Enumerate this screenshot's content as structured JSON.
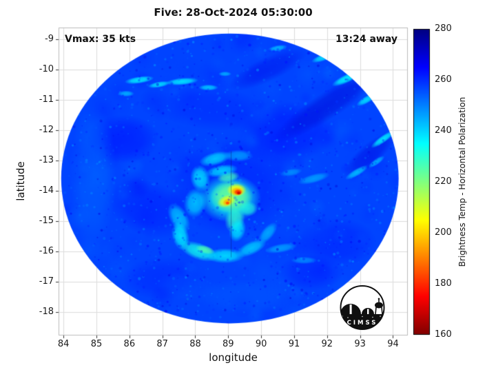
{
  "chart_data": {
    "type": "heatmap",
    "title": "Five: 28-Oct-2024 05:30:00",
    "xlabel": "longitude",
    "ylabel": "latitude",
    "annotations": {
      "vmax": "Vmax: 35 kts",
      "away": "13:24 away"
    },
    "colorbar": {
      "label": "Brightness Temp - Horizontal Polarization",
      "ticks": [
        160,
        180,
        200,
        220,
        240,
        260,
        280
      ],
      "range": [
        160,
        280
      ],
      "colormap": "jet-reversed"
    },
    "xlim": [
      83.85,
      94.45
    ],
    "ylim": [
      -18.78,
      -8.62
    ],
    "xticks": [
      84,
      85,
      86,
      87,
      88,
      89,
      90,
      91,
      92,
      93,
      94
    ],
    "yticks": [
      -9,
      -10,
      -11,
      -12,
      -13,
      -14,
      -15,
      -16,
      -17,
      -18
    ],
    "grid": true,
    "swath": {
      "cx": 89.05,
      "cy": -13.6,
      "rx": 5.12,
      "ry": 4.78,
      "base_temp": 257
    },
    "feature_format": [
      "lon",
      "lat",
      "rx",
      "ry",
      "rot_deg",
      "temp_K",
      "alpha"
    ],
    "features": [
      [
        85.8,
        -12.3,
        1.1,
        0.8,
        0,
        265,
        0.45
      ],
      [
        86.6,
        -14.6,
        1.3,
        0.9,
        20,
        264,
        0.4
      ],
      [
        90.8,
        -12.1,
        1.6,
        1.0,
        -10,
        265,
        0.4
      ],
      [
        92.3,
        -15.7,
        1.2,
        0.8,
        0,
        264,
        0.35
      ],
      [
        88.5,
        -11.3,
        1.8,
        0.7,
        5,
        263,
        0.3
      ],
      [
        91.5,
        -16.7,
        1.0,
        0.6,
        0,
        265,
        0.3
      ],
      [
        87.0,
        -16.9,
        1.2,
        0.7,
        0,
        264,
        0.3
      ],
      [
        92.0,
        -11.2,
        1.9,
        0.45,
        -33,
        270,
        0.5
      ],
      [
        93.3,
        -12.8,
        1.0,
        0.35,
        -40,
        269,
        0.45
      ],
      [
        90.2,
        -10.0,
        1.3,
        0.4,
        -25,
        268,
        0.4
      ],
      [
        84.9,
        -13.5,
        0.7,
        2.5,
        0,
        252,
        0.45
      ],
      [
        89.5,
        -17.5,
        1.5,
        0.6,
        0,
        253,
        0.35
      ],
      [
        87.8,
        -17.2,
        1.0,
        0.5,
        10,
        254,
        0.3
      ],
      [
        86.3,
        -10.35,
        0.45,
        0.12,
        -8,
        236,
        0.9
      ],
      [
        86.9,
        -10.5,
        0.35,
        0.1,
        -10,
        238,
        0.9
      ],
      [
        87.6,
        -10.4,
        0.5,
        0.12,
        -5,
        237,
        0.9
      ],
      [
        88.4,
        -10.6,
        0.3,
        0.1,
        0,
        240,
        0.85
      ],
      [
        85.9,
        -10.8,
        0.25,
        0.1,
        0,
        242,
        0.8
      ],
      [
        88.9,
        -10.15,
        0.2,
        0.08,
        0,
        243,
        0.8
      ],
      [
        91.9,
        -9.6,
        0.4,
        0.12,
        -20,
        238,
        0.9
      ],
      [
        92.6,
        -10.3,
        0.5,
        0.14,
        -25,
        235,
        0.9
      ],
      [
        93.2,
        -11.0,
        0.35,
        0.12,
        -30,
        238,
        0.9
      ],
      [
        93.7,
        -12.3,
        0.45,
        0.12,
        -35,
        236,
        0.9
      ],
      [
        94.0,
        -11.6,
        0.3,
        0.1,
        -30,
        240,
        0.85
      ],
      [
        90.5,
        -9.3,
        0.3,
        0.1,
        -10,
        241,
        0.8
      ],
      [
        92.9,
        -13.4,
        0.4,
        0.12,
        -30,
        240,
        0.8
      ],
      [
        93.5,
        -13.05,
        0.3,
        0.1,
        -35,
        242,
        0.8
      ],
      [
        91.6,
        -13.6,
        0.5,
        0.15,
        -15,
        244,
        0.75
      ],
      [
        90.9,
        -13.4,
        0.35,
        0.12,
        -10,
        246,
        0.7
      ],
      [
        90.6,
        -15.9,
        0.5,
        0.15,
        -10,
        243,
        0.7
      ],
      [
        91.3,
        -16.3,
        0.4,
        0.12,
        0,
        245,
        0.65
      ],
      [
        89.1,
        -13.9,
        1.9,
        1.6,
        0,
        263,
        0.45
      ],
      [
        87.5,
        -14.9,
        0.5,
        0.3,
        60,
        240,
        0.8
      ],
      [
        87.55,
        -15.5,
        0.45,
        0.28,
        75,
        236,
        0.85
      ],
      [
        88.1,
        -16.0,
        0.6,
        0.28,
        20,
        233,
        0.85
      ],
      [
        88.9,
        -16.15,
        0.6,
        0.25,
        0,
        236,
        0.8
      ],
      [
        89.7,
        -15.9,
        0.5,
        0.22,
        -25,
        238,
        0.75
      ],
      [
        90.2,
        -15.4,
        0.4,
        0.2,
        -50,
        241,
        0.7
      ],
      [
        88.3,
        -15.95,
        0.3,
        0.14,
        15,
        225,
        0.8
      ],
      [
        88.0,
        -14.4,
        0.35,
        0.5,
        10,
        238,
        0.75
      ],
      [
        88.15,
        -13.6,
        0.3,
        0.45,
        -10,
        236,
        0.8
      ],
      [
        88.6,
        -12.95,
        0.5,
        0.22,
        -15,
        237,
        0.75
      ],
      [
        89.3,
        -12.85,
        0.45,
        0.2,
        0,
        242,
        0.65
      ],
      [
        89.05,
        -14.25,
        0.95,
        0.8,
        0,
        233,
        0.9
      ],
      [
        89.1,
        -14.2,
        0.65,
        0.55,
        0,
        222,
        0.9
      ],
      [
        89.0,
        -13.55,
        0.35,
        0.18,
        -10,
        227,
        0.8
      ],
      [
        88.8,
        -13.35,
        0.5,
        0.2,
        -10,
        236,
        0.75
      ],
      [
        89.25,
        -13.98,
        0.3,
        0.22,
        0,
        205,
        0.95
      ],
      [
        89.27,
        -14.03,
        0.2,
        0.15,
        0,
        194,
        0.95
      ],
      [
        89.3,
        -14.05,
        0.13,
        0.1,
        0,
        180,
        0.95
      ],
      [
        89.32,
        -14.08,
        0.07,
        0.06,
        0,
        168,
        0.95
      ],
      [
        88.95,
        -14.35,
        0.3,
        0.2,
        -20,
        207,
        0.9
      ],
      [
        88.97,
        -14.38,
        0.15,
        0.12,
        -20,
        195,
        0.9
      ],
      [
        88.98,
        -14.41,
        0.07,
        0.06,
        0,
        182,
        0.9
      ],
      [
        89.2,
        -14.95,
        0.3,
        0.45,
        15,
        229,
        0.8
      ],
      [
        89.28,
        -15.3,
        0.25,
        0.4,
        15,
        236,
        0.8
      ],
      [
        89.6,
        -14.6,
        0.3,
        0.25,
        0,
        231,
        0.7
      ]
    ],
    "mottle": {
      "seed": 777,
      "count": 160,
      "amp": 9,
      "min_r": 8,
      "max_r": 26,
      "alpha": 0.2
    },
    "speckle": {
      "seed": 12345,
      "count": 1400,
      "amp": 13,
      "alpha": 0.5
    },
    "track_line": {
      "lon": 89.07,
      "lat1": -12.7,
      "lat2": -16.2,
      "color": "rgba(10,10,80,0.35)"
    }
  },
  "logo": {
    "text": "CIMSS"
  }
}
